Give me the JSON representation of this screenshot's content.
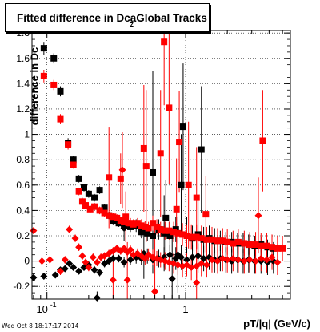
{
  "chart_data": {
    "type": "scatter",
    "title": "Fitted difference in Dca",
    "title_tail": "Global Tracks",
    "title_subscript": "Z",
    "xlabel": "pT/|q| (GeV/c)",
    "ylabel": "difference in Dc",
    "x_scale": "log",
    "xlim": [
      0.078,
      5.7
    ],
    "ylim": [
      -0.3,
      1.82
    ],
    "grid": true,
    "x_ticks": [
      {
        "v": 0.1,
        "label": "10",
        "exp": "-1"
      },
      {
        "v": 1,
        "label": "1"
      }
    ],
    "y_ticks": [
      -0.2,
      0,
      0.2,
      0.4,
      0.6,
      0.8,
      1,
      1.2,
      1.4,
      1.6,
      1.8
    ],
    "y_tick_labels": [
      "-0.2",
      "0",
      "0.2",
      "0.4",
      "0.6",
      "0.8",
      "1",
      "1.2",
      "1.4",
      "1.6",
      "1.8"
    ],
    "series": [
      {
        "marker": "square",
        "color": "#000000",
        "points": [
          [
            0.095,
            1.68,
            0.05
          ],
          [
            0.112,
            1.6,
            0.04
          ],
          [
            0.125,
            1.34,
            0.04
          ],
          [
            0.142,
            0.93,
            0.04
          ],
          [
            0.155,
            0.8,
            0.03
          ],
          [
            0.17,
            0.65,
            0.03
          ],
          [
            0.185,
            0.58,
            0.03
          ],
          [
            0.2,
            0.53,
            0.03
          ],
          [
            0.22,
            0.5,
            0.03
          ],
          [
            0.24,
            0.56,
            0.03
          ],
          [
            0.26,
            0.42,
            0.03
          ],
          [
            0.28,
            0.36,
            0.03
          ],
          [
            0.3,
            0.32,
            0.03
          ],
          [
            0.33,
            0.3,
            0.03
          ],
          [
            0.36,
            0.28,
            0.03
          ],
          [
            0.4,
            0.27,
            0.04
          ],
          [
            0.44,
            0.28,
            0.05
          ],
          [
            0.48,
            0.23,
            0.05
          ],
          [
            0.53,
            0.22,
            0.06
          ],
          [
            0.58,
            0.2,
            0.1
          ],
          [
            0.64,
            0.25,
            0.08
          ],
          [
            0.7,
            0.22,
            0.3
          ],
          [
            0.77,
            0.2,
            0.12
          ],
          [
            0.85,
            0.25,
            0.1
          ],
          [
            0.93,
            0.6,
            0.4
          ],
          [
            1.02,
            0.2,
            0.15
          ],
          [
            1.12,
            0.18,
            0.1
          ],
          [
            1.23,
            0.21,
            0.3
          ],
          [
            1.35,
            0.17,
            0.1
          ],
          [
            1.48,
            0.18,
            0.1
          ],
          [
            1.62,
            0.16,
            0.1
          ],
          [
            1.78,
            0.16,
            0.08
          ],
          [
            1.95,
            0.15,
            0.08
          ],
          [
            2.15,
            0.15,
            0.08
          ],
          [
            2.37,
            0.14,
            0.08
          ],
          [
            2.6,
            0.14,
            0.08
          ],
          [
            2.85,
            0.13,
            0.08
          ],
          [
            3.15,
            0.12,
            0.08
          ],
          [
            3.5,
            0.13,
            0.06
          ],
          [
            3.9,
            0.11,
            0.06
          ],
          [
            4.3,
            0.1,
            0.05
          ],
          [
            0.96,
            1.06,
            0.5
          ],
          [
            0.58,
            0.7,
            0.8
          ],
          [
            1.3,
            0.88,
            0.5
          ],
          [
            0.72,
            0.34,
            0.3
          ]
        ]
      },
      {
        "marker": "square",
        "color": "#ff0000",
        "points": [
          [
            0.095,
            1.46,
            0.05
          ],
          [
            0.112,
            1.39,
            0.04
          ],
          [
            0.125,
            1.12,
            0.04
          ],
          [
            0.142,
            0.92,
            0.04
          ],
          [
            0.155,
            0.76,
            0.03
          ],
          [
            0.17,
            0.55,
            0.03
          ],
          [
            0.18,
            0.47,
            0.03
          ],
          [
            0.19,
            0.44,
            0.03
          ],
          [
            0.205,
            0.41,
            0.03
          ],
          [
            0.22,
            0.43,
            0.03
          ],
          [
            0.24,
            0.4,
            0.03
          ],
          [
            0.26,
            0.38,
            0.03
          ],
          [
            0.28,
            0.36,
            0.03
          ],
          [
            0.3,
            0.35,
            0.03
          ],
          [
            0.32,
            0.34,
            0.03
          ],
          [
            0.34,
            0.32,
            0.03
          ],
          [
            0.36,
            0.31,
            0.03
          ],
          [
            0.38,
            0.3,
            0.03
          ],
          [
            0.4,
            0.3,
            0.04
          ],
          [
            0.42,
            0.29,
            0.04
          ],
          [
            0.45,
            0.3,
            0.04
          ],
          [
            0.48,
            0.28,
            0.05
          ],
          [
            0.51,
            0.27,
            0.05
          ],
          [
            0.54,
            0.26,
            0.05
          ],
          [
            0.58,
            0.3,
            0.06
          ],
          [
            0.62,
            0.27,
            0.06
          ],
          [
            0.66,
            0.25,
            0.06
          ],
          [
            0.71,
            0.24,
            0.07
          ],
          [
            0.76,
            0.24,
            0.07
          ],
          [
            0.82,
            0.23,
            0.08
          ],
          [
            0.88,
            0.22,
            0.08
          ],
          [
            0.95,
            0.21,
            0.09
          ],
          [
            1.02,
            0.2,
            0.09
          ],
          [
            1.1,
            0.19,
            0.1
          ],
          [
            1.2,
            0.19,
            0.1
          ],
          [
            1.3,
            0.18,
            0.1
          ],
          [
            1.42,
            0.17,
            0.1
          ],
          [
            1.55,
            0.17,
            0.1
          ],
          [
            1.7,
            0.16,
            0.1
          ],
          [
            1.85,
            0.16,
            0.1
          ],
          [
            2.0,
            0.15,
            0.1
          ],
          [
            2.2,
            0.14,
            0.1
          ],
          [
            2.4,
            0.15,
            0.1
          ],
          [
            2.65,
            0.14,
            0.1
          ],
          [
            2.9,
            0.13,
            0.1
          ],
          [
            3.2,
            0.13,
            0.1
          ],
          [
            3.5,
            0.12,
            0.1
          ],
          [
            3.85,
            0.12,
            0.1
          ],
          [
            4.2,
            0.11,
            0.1
          ],
          [
            4.6,
            0.1,
            0.1
          ],
          [
            5.0,
            0.1,
            0.1
          ],
          [
            3.6,
            0.95,
            0.4
          ],
          [
            0.7,
            1.73,
            0.5
          ],
          [
            0.76,
            1.21,
            0.6
          ],
          [
            0.5,
            0.89,
            0.5
          ],
          [
            0.52,
            0.75,
            0.6
          ],
          [
            0.28,
            0.66,
            0.4
          ],
          [
            0.34,
            0.65,
            0.2
          ],
          [
            0.66,
            0.85,
            0.5
          ],
          [
            0.9,
            0.94,
            0.4
          ],
          [
            1.05,
            0.6,
            0.5
          ],
          [
            1.2,
            0.5,
            0.4
          ],
          [
            0.37,
            0.35,
            0.2
          ],
          [
            0.86,
            0.41,
            0.4
          ],
          [
            1.4,
            0.37,
            0.3
          ]
        ]
      },
      {
        "marker": "diamond",
        "color": "#000000",
        "points": [
          [
            0.08,
            -0.13,
            0.02
          ],
          [
            0.095,
            -0.12,
            0.02
          ],
          [
            0.115,
            -0.11,
            0.02
          ],
          [
            0.125,
            -0.07,
            0.02
          ],
          [
            0.135,
            -0.06,
            0.02
          ],
          [
            0.145,
            -0.02,
            0.02
          ],
          [
            0.155,
            -0.05,
            0.02
          ],
          [
            0.17,
            -0.08,
            0.02
          ],
          [
            0.185,
            -0.05,
            0.02
          ],
          [
            0.2,
            -0.03,
            0.02
          ],
          [
            0.22,
            -0.07,
            0.03
          ],
          [
            0.24,
            -0.09,
            0.03
          ],
          [
            0.26,
            -0.02,
            0.03
          ],
          [
            0.28,
            0.0,
            0.03
          ],
          [
            0.3,
            0.02,
            0.03
          ],
          [
            0.33,
            0.02,
            0.03
          ],
          [
            0.36,
            -0.01,
            0.04
          ],
          [
            0.4,
            0.01,
            0.04
          ],
          [
            0.44,
            0.03,
            0.05
          ],
          [
            0.48,
            0.02,
            0.05
          ],
          [
            0.53,
            0.04,
            0.06
          ],
          [
            0.58,
            0.01,
            0.06
          ],
          [
            0.64,
            0.02,
            0.07
          ],
          [
            0.7,
            0.03,
            0.08
          ],
          [
            0.77,
            0.05,
            0.08
          ],
          [
            0.85,
            0.02,
            0.09
          ],
          [
            0.93,
            0.03,
            0.1
          ],
          [
            1.02,
            0.01,
            0.1
          ],
          [
            1.12,
            0.03,
            0.1
          ],
          [
            1.23,
            0.04,
            0.1
          ],
          [
            1.35,
            0.02,
            0.1
          ],
          [
            1.48,
            0.03,
            0.1
          ],
          [
            1.62,
            0.01,
            0.1
          ],
          [
            1.78,
            0.02,
            0.1
          ],
          [
            1.95,
            0.01,
            0.1
          ],
          [
            2.15,
            0.0,
            0.1
          ],
          [
            2.37,
            0.01,
            0.1
          ],
          [
            2.6,
            0.0,
            0.1
          ],
          [
            2.85,
            0.01,
            0.1
          ],
          [
            3.15,
            0.0,
            0.1
          ],
          [
            3.5,
            0.0,
            0.1
          ],
          [
            3.9,
            -0.01,
            0.1
          ],
          [
            4.3,
            0.0,
            0.1
          ],
          [
            0.23,
            -0.29,
            0.05
          ],
          [
            0.36,
            0.26,
            0.1
          ],
          [
            0.5,
            0.06,
            0.2
          ],
          [
            0.8,
            -0.14,
            0.4
          ],
          [
            0.88,
            0.05,
            0.3
          ]
        ]
      },
      {
        "marker": "diamond",
        "color": "#ff0000",
        "points": [
          [
            0.08,
            0.24,
            0.02
          ],
          [
            0.092,
            0.0,
            0.03
          ],
          [
            0.105,
            0.01,
            0.03
          ],
          [
            0.125,
            -0.08,
            0.03
          ],
          [
            0.135,
            0.01,
            0.03
          ],
          [
            0.145,
            0.25,
            0.03
          ],
          [
            0.16,
            0.18,
            0.03
          ],
          [
            0.17,
            0.11,
            0.03
          ],
          [
            0.18,
            0.04,
            0.03
          ],
          [
            0.19,
            -0.01,
            0.03
          ],
          [
            0.2,
            -0.05,
            0.03
          ],
          [
            0.215,
            0.03,
            0.03
          ],
          [
            0.23,
            -0.01,
            0.03
          ],
          [
            0.245,
            0.03,
            0.03
          ],
          [
            0.26,
            0.04,
            0.03
          ],
          [
            0.28,
            0.06,
            0.03
          ],
          [
            0.3,
            0.08,
            0.03
          ],
          [
            0.32,
            0.1,
            0.03
          ],
          [
            0.34,
            0.08,
            0.03
          ],
          [
            0.36,
            0.1,
            0.03
          ],
          [
            0.38,
            0.07,
            0.03
          ],
          [
            0.4,
            0.09,
            0.04
          ],
          [
            0.42,
            0.05,
            0.04
          ],
          [
            0.45,
            0.06,
            0.04
          ],
          [
            0.48,
            0.04,
            0.05
          ],
          [
            0.51,
            0.02,
            0.05
          ],
          [
            0.54,
            0.05,
            0.05
          ],
          [
            0.58,
            0.03,
            0.06
          ],
          [
            0.62,
            0.02,
            0.06
          ],
          [
            0.66,
            0.01,
            0.06
          ],
          [
            0.71,
            0.0,
            0.07
          ],
          [
            0.76,
            -0.01,
            0.07
          ],
          [
            0.82,
            -0.02,
            0.08
          ],
          [
            0.88,
            -0.03,
            0.08
          ],
          [
            0.95,
            -0.04,
            0.09
          ],
          [
            1.02,
            -0.03,
            0.09
          ],
          [
            1.1,
            -0.05,
            0.1
          ],
          [
            1.2,
            -0.04,
            0.1
          ],
          [
            1.3,
            -0.02,
            0.1
          ],
          [
            1.42,
            -0.03,
            0.1
          ],
          [
            1.55,
            0.01,
            0.1
          ],
          [
            1.7,
            0.0,
            0.1
          ],
          [
            1.85,
            0.02,
            0.1
          ],
          [
            2.0,
            0.01,
            0.1
          ],
          [
            2.2,
            0.02,
            0.1
          ],
          [
            2.4,
            0.01,
            0.1
          ],
          [
            2.65,
            0.0,
            0.1
          ],
          [
            2.9,
            0.01,
            0.1
          ],
          [
            3.2,
            0.0,
            0.1
          ],
          [
            3.5,
            0.02,
            0.1
          ],
          [
            3.85,
            0.01,
            0.1
          ],
          [
            4.2,
            0.03,
            0.1
          ],
          [
            4.6,
            -0.01,
            0.1
          ],
          [
            3.35,
            0.36,
            0.3
          ],
          [
            0.35,
            0.72,
            0.3
          ],
          [
            1.2,
            -0.17,
            0.4
          ],
          [
            0.6,
            -0.24,
            0.5
          ],
          [
            0.38,
            -0.15,
            0.3
          ],
          [
            0.3,
            -0.15,
            0.2
          ]
        ]
      }
    ]
  },
  "footer": {
    "timestamp": "Wed Oct  8 18:17:17 2014"
  }
}
